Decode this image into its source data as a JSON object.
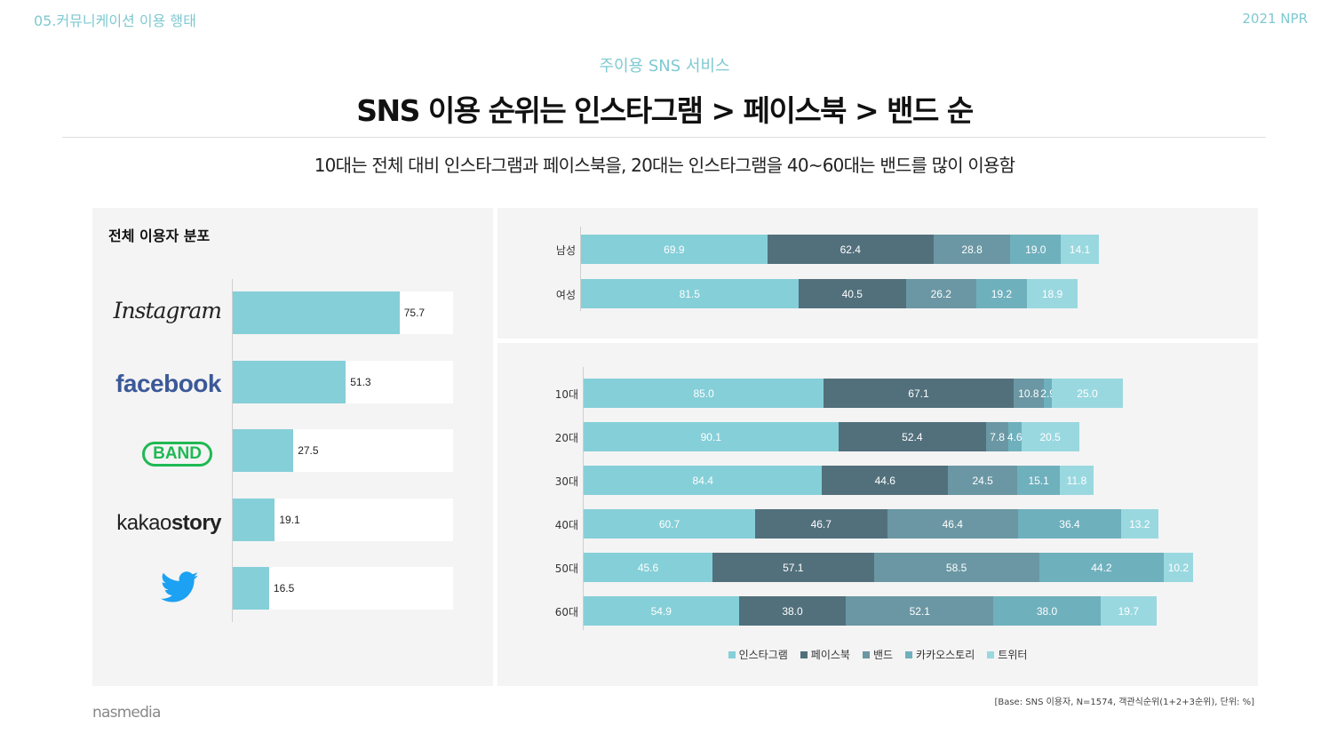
{
  "header": {
    "section": "05.커뮤니케이션 이용 행태",
    "year": "2021 NPR"
  },
  "subtitle": "주이용 SNS 서비스",
  "title": "SNS 이용 순위는 인스타그램 > 페이스북 > 밴드 순",
  "description": "10대는 전체 대비 인스타그램과 페이스북을, 20대는 인스타그램을 40~60대는 밴드를 많이 이용함",
  "left_panel": {
    "title": "전체 이용자 분포"
  },
  "logos": {
    "instagram": "Instagram",
    "facebook": "facebook",
    "band": "BAND",
    "kakaostory_a": "kakao",
    "kakaostory_b": "story"
  },
  "colors": {
    "instagram": "#85cfd8",
    "facebook": "#52707c",
    "band": "#6a97a3",
    "kakaostory": "#6fb0bd",
    "twitter": "#9ad8e0"
  },
  "chart_data": [
    {
      "type": "bar",
      "orientation": "horizontal",
      "title": "전체 이용자 분포",
      "categories": [
        "Instagram",
        "facebook",
        "BAND",
        "kakaostory",
        "twitter"
      ],
      "values": [
        75.7,
        51.3,
        27.5,
        19.1,
        16.5
      ],
      "value_labels": [
        "75.7",
        "51.3",
        "27.5",
        "19.1",
        "16.5"
      ],
      "xlim": [
        0,
        100
      ]
    },
    {
      "type": "bar",
      "orientation": "horizontal",
      "stacked": true,
      "categories": [
        "남성",
        "여성"
      ],
      "series": [
        {
          "name": "인스타그램",
          "values": [
            69.9,
            81.5
          ],
          "labels": [
            "69.9",
            "81.5"
          ]
        },
        {
          "name": "페이스북",
          "values": [
            62.4,
            40.5
          ],
          "labels": [
            "62.4",
            "40.5"
          ]
        },
        {
          "name": "밴드",
          "values": [
            28.8,
            26.2
          ],
          "labels": [
            "28.8",
            "26.2"
          ]
        },
        {
          "name": "카카오스토리",
          "values": [
            19.0,
            19.2
          ],
          "labels": [
            "19.0",
            "19.2"
          ]
        },
        {
          "name": "트위터",
          "values": [
            14.1,
            18.9
          ],
          "labels": [
            "14.1",
            "18.9"
          ]
        }
      ]
    },
    {
      "type": "bar",
      "orientation": "horizontal",
      "stacked": true,
      "categories": [
        "10대",
        "20대",
        "30대",
        "40대",
        "50대",
        "60대"
      ],
      "series": [
        {
          "name": "인스타그램",
          "values": [
            85.0,
            90.1,
            84.4,
            60.7,
            45.6,
            54.9
          ],
          "labels": [
            "85.0",
            "90.1",
            "84.4",
            "60.7",
            "45.6",
            "54.9"
          ]
        },
        {
          "name": "페이스북",
          "values": [
            67.1,
            52.4,
            44.6,
            46.7,
            57.1,
            38.0
          ],
          "labels": [
            "67.1",
            "52.4",
            "44.6",
            "46.7",
            "57.1",
            "38.0"
          ]
        },
        {
          "name": "밴드",
          "values": [
            10.8,
            7.8,
            24.5,
            46.4,
            58.5,
            52.1
          ],
          "labels": [
            "10.8",
            "7.8",
            "24.5",
            "46.4",
            "58.5",
            "52.1"
          ]
        },
        {
          "name": "카카오스토리",
          "values": [
            2.9,
            4.6,
            15.1,
            36.4,
            44.2,
            38.0
          ],
          "labels": [
            "2.9",
            "4.6",
            "15.1",
            "36.4",
            "44.2",
            "38.0"
          ]
        },
        {
          "name": "트위터",
          "values": [
            25.0,
            20.5,
            11.8,
            13.2,
            10.2,
            19.7
          ],
          "labels": [
            "25.0",
            "20.5",
            "11.8",
            "13.2",
            "10.2",
            "19.7"
          ]
        }
      ],
      "legend": "bottom"
    }
  ],
  "legend": [
    "인스타그램",
    "페이스북",
    "밴드",
    "카카오스토리",
    "트위터"
  ],
  "footer": {
    "base_note": "[Base: SNS 이용자, N=1574, 객관식순위(1+2+3순위), 단위: %]",
    "brand": "nasmedia"
  }
}
